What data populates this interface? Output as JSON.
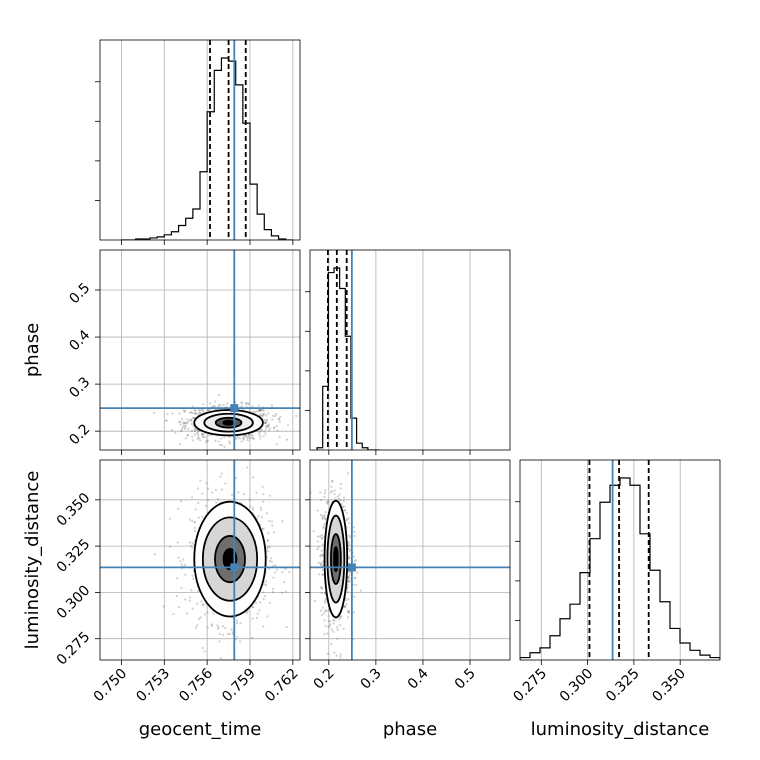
{
  "chart_data": {
    "type": "corner",
    "parameters": [
      {
        "name": "geocent_time",
        "label": "geocent_time",
        "range": [
          0.7485,
          0.7625
        ],
        "ticks": [
          0.75,
          0.753,
          0.756,
          0.759,
          0.762
        ],
        "tick_labels": [
          "0.750",
          "0.753",
          "0.756",
          "0.759",
          "0.762"
        ]
      },
      {
        "name": "phase",
        "label": "phase",
        "range": [
          0.16,
          0.585
        ],
        "ticks": [
          0.2,
          0.3,
          0.4,
          0.5
        ],
        "tick_labels": [
          "0.2",
          "0.3",
          "0.4",
          "0.5"
        ]
      },
      {
        "name": "luminosity_distance",
        "label": "luminosity_distance",
        "range": [
          0.2635,
          0.3715
        ],
        "ticks": [
          0.275,
          0.3,
          0.325,
          0.35
        ],
        "tick_labels": [
          "0.275",
          "0.300",
          "0.325",
          "0.350"
        ]
      }
    ],
    "truths": [
      0.7579,
      0.249,
      0.3135
    ],
    "quantiles": [
      [
        0.7562,
        0.7575,
        0.7587
      ],
      [
        0.198,
        0.217,
        0.238
      ],
      [
        0.301,
        0.317,
        0.333
      ]
    ],
    "histograms": [
      {
        "bin_edges": [
          0.75,
          0.7505,
          0.751,
          0.7515,
          0.752,
          0.7525,
          0.753,
          0.7535,
          0.754,
          0.7545,
          0.755,
          0.7555,
          0.756,
          0.7565,
          0.757,
          0.7575,
          0.758,
          0.7585,
          0.759,
          0.7595,
          0.76,
          0.7605,
          0.761,
          0.7615,
          0.762
        ],
        "counts": [
          0,
          0,
          1,
          1,
          2,
          3,
          5,
          8,
          14,
          21,
          30,
          66,
          124,
          164,
          176,
          173,
          150,
          113,
          54,
          25,
          10,
          4,
          1,
          0
        ]
      },
      {
        "bin_edges": [
          0.175,
          0.187,
          0.199,
          0.211,
          0.223,
          0.235,
          0.247,
          0.259,
          0.271,
          0.283,
          0.295,
          0.307
        ],
        "counts": [
          1,
          28,
          78,
          80,
          71,
          50,
          14,
          3,
          1,
          0,
          0
        ]
      },
      {
        "bin_edges": [
          0.2635,
          0.2689,
          0.2743,
          0.2797,
          0.2851,
          0.2905,
          0.2959,
          0.3013,
          0.3067,
          0.3121,
          0.3175,
          0.3229,
          0.3283,
          0.3337,
          0.3391,
          0.3445,
          0.3499,
          0.3553,
          0.3607,
          0.3661,
          0.3715
        ],
        "counts": [
          1,
          3,
          5,
          10,
          17,
          23,
          36,
          50,
          65,
          72,
          75,
          72,
          52,
          37,
          24,
          13,
          7,
          4,
          2,
          1
        ]
      }
    ],
    "pairs": [
      {
        "x": "geocent_time",
        "y": "phase",
        "center": [
          0.7575,
          0.218
        ],
        "sigma": [
          0.0012,
          0.011
        ],
        "scatter_sigma": [
          0.0015,
          0.018
        ],
        "contour_levels": [
          {
            "rx": 0.00036,
            "ry": 0.0045,
            "fill": "#000000"
          },
          {
            "rx": 0.0009,
            "ry": 0.0105,
            "fill": "#5a5a5a"
          },
          {
            "rx": 0.0017,
            "ry": 0.019,
            "fill": "#ededed"
          },
          {
            "rx": 0.0024,
            "ry": 0.027,
            "fill": "#ffffff"
          }
        ]
      },
      {
        "x": "geocent_time",
        "y": "luminosity_distance",
        "center": [
          0.7576,
          0.318
        ],
        "sigma": [
          0.0012,
          0.013
        ],
        "scatter_sigma": [
          0.0014,
          0.017
        ],
        "contour_levels": [
          {
            "rx": 0.00045,
            "ry": 0.0055,
            "fill": "#000000"
          },
          {
            "rx": 0.00105,
            "ry": 0.0125,
            "fill": "#6e6e6e"
          },
          {
            "rx": 0.0019,
            "ry": 0.0225,
            "fill": "#d6d6d6"
          },
          {
            "rx": 0.0025,
            "ry": 0.031,
            "fill": "#ffffff"
          }
        ]
      },
      {
        "x": "phase",
        "y": "luminosity_distance",
        "center": [
          0.215,
          0.318
        ],
        "sigma": [
          0.012,
          0.013
        ],
        "scatter_sigma": [
          0.016,
          0.017
        ],
        "contour_levels": [
          {
            "rx": 0.004,
            "ry": 0.0065,
            "fill": "#000000"
          },
          {
            "rx": 0.0105,
            "ry": 0.0135,
            "fill": "#6e6e6e"
          },
          {
            "rx": 0.018,
            "ry": 0.0235,
            "fill": "#d6d6d6"
          },
          {
            "rx": 0.024,
            "ry": 0.0315,
            "fill": "#ffffff"
          }
        ]
      }
    ],
    "grid": true,
    "colors": {
      "truth": "#4682b4",
      "histogram": "#000000",
      "samples": "#555555"
    }
  }
}
